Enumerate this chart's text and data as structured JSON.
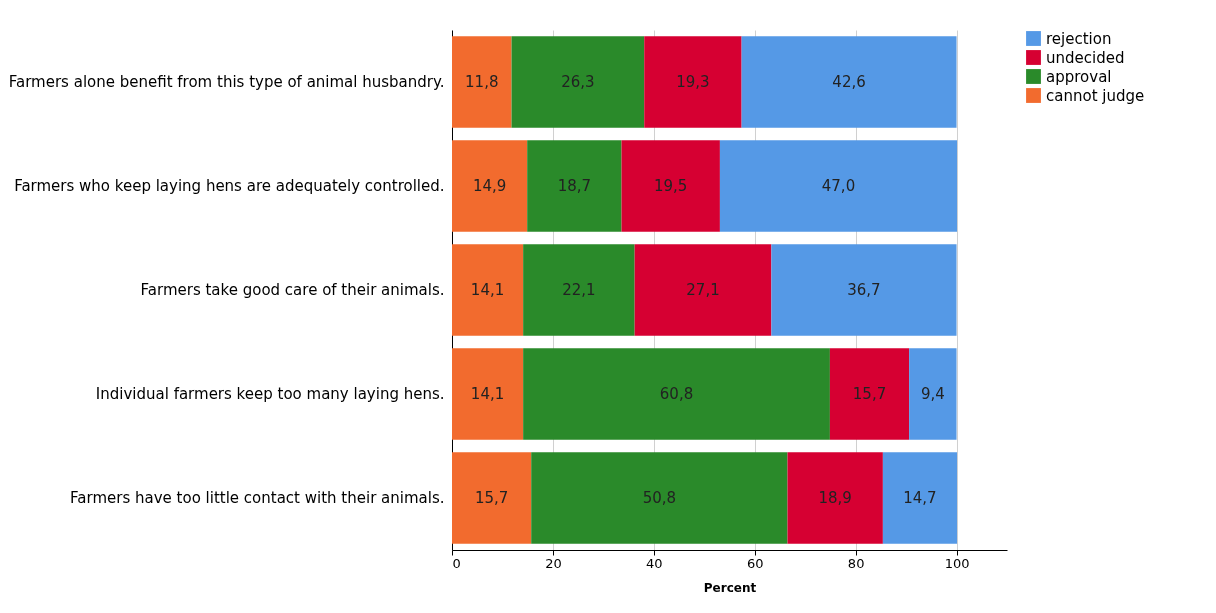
{
  "chart_data": {
    "type": "bar",
    "orientation": "horizontal",
    "stacked": true,
    "xlabel": "Percent",
    "xlim": [
      0,
      110
    ],
    "xticks": [
      0,
      20,
      40,
      60,
      80,
      100
    ],
    "grid": "x",
    "legend": "top right",
    "categories": [
      "Farmers alone benefit from this type of animal husbandry.",
      "Farmers who keep laying hens are adequately controlled.",
      "Farmers take good care of their animals.",
      "Individual farmers keep too many laying hens.",
      "Farmers have too little contact with their animals."
    ],
    "series": [
      {
        "name": "cannot judge",
        "color": "#f26b2e",
        "values": [
          11.8,
          14.9,
          14.1,
          14.1,
          15.7
        ],
        "value_labels": [
          "11,8",
          "14,9",
          "14,1",
          "14,1",
          "15,7"
        ]
      },
      {
        "name": "approval",
        "color": "#2a8a2a",
        "values": [
          26.3,
          18.7,
          22.1,
          60.8,
          50.8
        ],
        "value_labels": [
          "26,3",
          "18,7",
          "22,1",
          "60,8",
          "50,8"
        ]
      },
      {
        "name": "undecided",
        "color": "#d60032",
        "values": [
          19.3,
          19.5,
          27.1,
          15.7,
          18.9
        ],
        "value_labels": [
          "19,3",
          "19,5",
          "27,1",
          "15,7",
          "18,9"
        ]
      },
      {
        "name": "rejection",
        "color": "#5599e6",
        "values": [
          42.6,
          47.0,
          36.7,
          9.4,
          14.7
        ],
        "value_labels": [
          "42,6",
          "47,0",
          "36,7",
          "9,4",
          "14,7"
        ]
      }
    ]
  }
}
